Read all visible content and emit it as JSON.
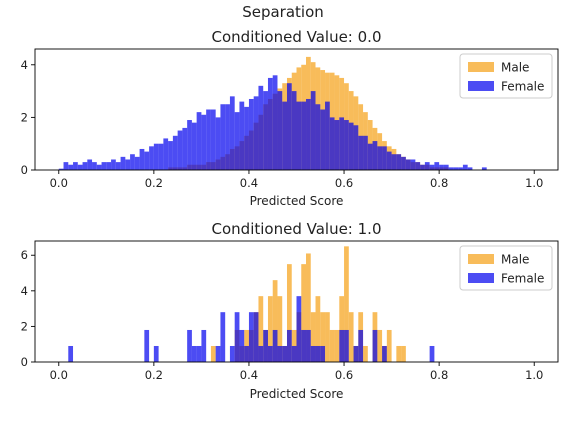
{
  "figure": {
    "suptitle": "Separation"
  },
  "chart_data": [
    {
      "type": "bar",
      "title": "Conditioned Value: 0.0",
      "xlabel": "Predicted Score",
      "ylabel": "",
      "xlim": [
        -0.05,
        1.05
      ],
      "ylim": [
        0,
        4.6
      ],
      "xticks": [
        "0.0",
        "0.2",
        "0.4",
        "0.6",
        "0.8",
        "1.0"
      ],
      "yticks": [
        "0",
        "2",
        "4"
      ],
      "legend_position": "upper-right",
      "bin_start": 0.0,
      "bin_width": 0.01,
      "series": [
        {
          "name": "Male",
          "color": "#f5a623",
          "opacity": 0.75,
          "values": [
            0,
            0,
            0,
            0,
            0,
            0,
            0,
            0,
            0,
            0,
            0,
            0,
            0,
            0,
            0,
            0,
            0,
            0,
            0,
            0,
            0,
            0,
            0,
            0.1,
            0.1,
            0.1,
            0.1,
            0.2,
            0.2,
            0.2,
            0.2,
            0.3,
            0.3,
            0.4,
            0.5,
            0.6,
            0.8,
            0.9,
            1.1,
            1.3,
            1.5,
            1.8,
            2.1,
            2.5,
            2.7,
            2.9,
            3.1,
            3.3,
            3.5,
            3.7,
            3.9,
            4.0,
            4.3,
            4.1,
            3.9,
            3.8,
            3.7,
            3.7,
            3.6,
            3.5,
            3.3,
            3.0,
            2.8,
            2.5,
            2.2,
            1.9,
            1.6,
            1.4,
            1.1,
            0.9,
            0.8,
            0.6,
            0.5,
            0.4,
            0.3,
            0.3,
            0.2,
            0.2,
            0.1,
            0.1,
            0.1,
            0.1,
            0,
            0,
            0,
            0,
            0,
            0,
            0,
            0,
            0,
            0,
            0,
            0,
            0,
            0,
            0,
            0,
            0,
            0
          ]
        },
        {
          "name": "Female",
          "color": "#0000ee",
          "opacity": 0.7,
          "values": [
            0.05,
            0.3,
            0.2,
            0.3,
            0.2,
            0.3,
            0.4,
            0.3,
            0.2,
            0.3,
            0.3,
            0.4,
            0.3,
            0.5,
            0.4,
            0.6,
            0.5,
            0.8,
            0.7,
            0.9,
            1.0,
            1.0,
            1.2,
            1.1,
            1.3,
            1.5,
            1.6,
            1.9,
            1.8,
            2.2,
            2.1,
            2.3,
            2.3,
            2.0,
            2.5,
            2.5,
            2.8,
            2.2,
            2.6,
            2.4,
            2.7,
            2.8,
            3.2,
            3.0,
            3.5,
            3.6,
            3.0,
            2.6,
            3.3,
            3.0,
            2.6,
            2.6,
            2.7,
            3.0,
            2.5,
            2.3,
            2.6,
            2.0,
            1.9,
            2.0,
            1.9,
            1.8,
            1.7,
            1.3,
            1.3,
            1.0,
            1.1,
            0.9,
            0.9,
            0.7,
            0.6,
            0.6,
            0.5,
            0.4,
            0.4,
            0.3,
            0.2,
            0.3,
            0.2,
            0.3,
            0.2,
            0.2,
            0.1,
            0.1,
            0.1,
            0.2,
            0.1,
            0,
            0,
            0.1,
            0,
            0,
            0,
            0,
            0,
            0,
            0,
            0,
            0,
            0
          ]
        }
      ]
    },
    {
      "type": "bar",
      "title": "Conditioned Value: 1.0",
      "xlabel": "Predicted Score",
      "ylabel": "",
      "xlim": [
        -0.05,
        1.05
      ],
      "ylim": [
        0,
        6.8
      ],
      "xticks": [
        "0.0",
        "0.2",
        "0.4",
        "0.6",
        "0.8",
        "1.0"
      ],
      "yticks": [
        "0",
        "2",
        "4",
        "6"
      ],
      "legend_position": "upper-right",
      "bin_start": 0.0,
      "bin_width": 0.01,
      "series": [
        {
          "name": "Male",
          "color": "#f5a623",
          "opacity": 0.75,
          "values": [
            0,
            0,
            0,
            0,
            0,
            0,
            0,
            0,
            0,
            0,
            0,
            0,
            0,
            0,
            0,
            0,
            0,
            0,
            0,
            0,
            0,
            0,
            0,
            0,
            0,
            0,
            0,
            0,
            0,
            0,
            0,
            0,
            0.9,
            0,
            0,
            0,
            0,
            1.8,
            0.9,
            1.8,
            1.8,
            2.8,
            3.7,
            1.8,
            3.7,
            4.6,
            3.7,
            0.9,
            5.5,
            1.8,
            2.8,
            5.5,
            6.1,
            2.8,
            3.7,
            2.8,
            2.8,
            1.8,
            1.8,
            3.7,
            6.5,
            2.8,
            0.9,
            2.8,
            0.9,
            0,
            2.8,
            1.8,
            0.9,
            1.8,
            0,
            0.9,
            0.9,
            0,
            0,
            0,
            0,
            0,
            0,
            0,
            0,
            0,
            0,
            0,
            0,
            0,
            0,
            0,
            0,
            0,
            0,
            0,
            0,
            0,
            0,
            0,
            0,
            0,
            0,
            0
          ]
        },
        {
          "name": "Female",
          "color": "#0000ee",
          "opacity": 0.7,
          "values": [
            0,
            0,
            0.9,
            0,
            0,
            0,
            0,
            0,
            0,
            0,
            0,
            0,
            0,
            0,
            0,
            0,
            0,
            0,
            1.8,
            0,
            0.9,
            0,
            0,
            0,
            0,
            0,
            0,
            1.8,
            0.9,
            0.9,
            1.8,
            0,
            0,
            0.9,
            2.8,
            0,
            0.9,
            2.8,
            1.8,
            0.9,
            2.8,
            2.8,
            0.9,
            1.8,
            0.9,
            1.8,
            0.9,
            0.9,
            1.8,
            0.9,
            3.7,
            1.8,
            1.8,
            0.9,
            0.9,
            0.9,
            0,
            0,
            0,
            1.8,
            1.8,
            0,
            0.9,
            1.8,
            0,
            0,
            1.8,
            0,
            0.9,
            0,
            0,
            0,
            0,
            0,
            0,
            0,
            0,
            0,
            0.9,
            0,
            0,
            0,
            0,
            0,
            0,
            0,
            0,
            0,
            0,
            0,
            0,
            0,
            0,
            0,
            0,
            0,
            0,
            0,
            0,
            0
          ]
        }
      ]
    }
  ]
}
